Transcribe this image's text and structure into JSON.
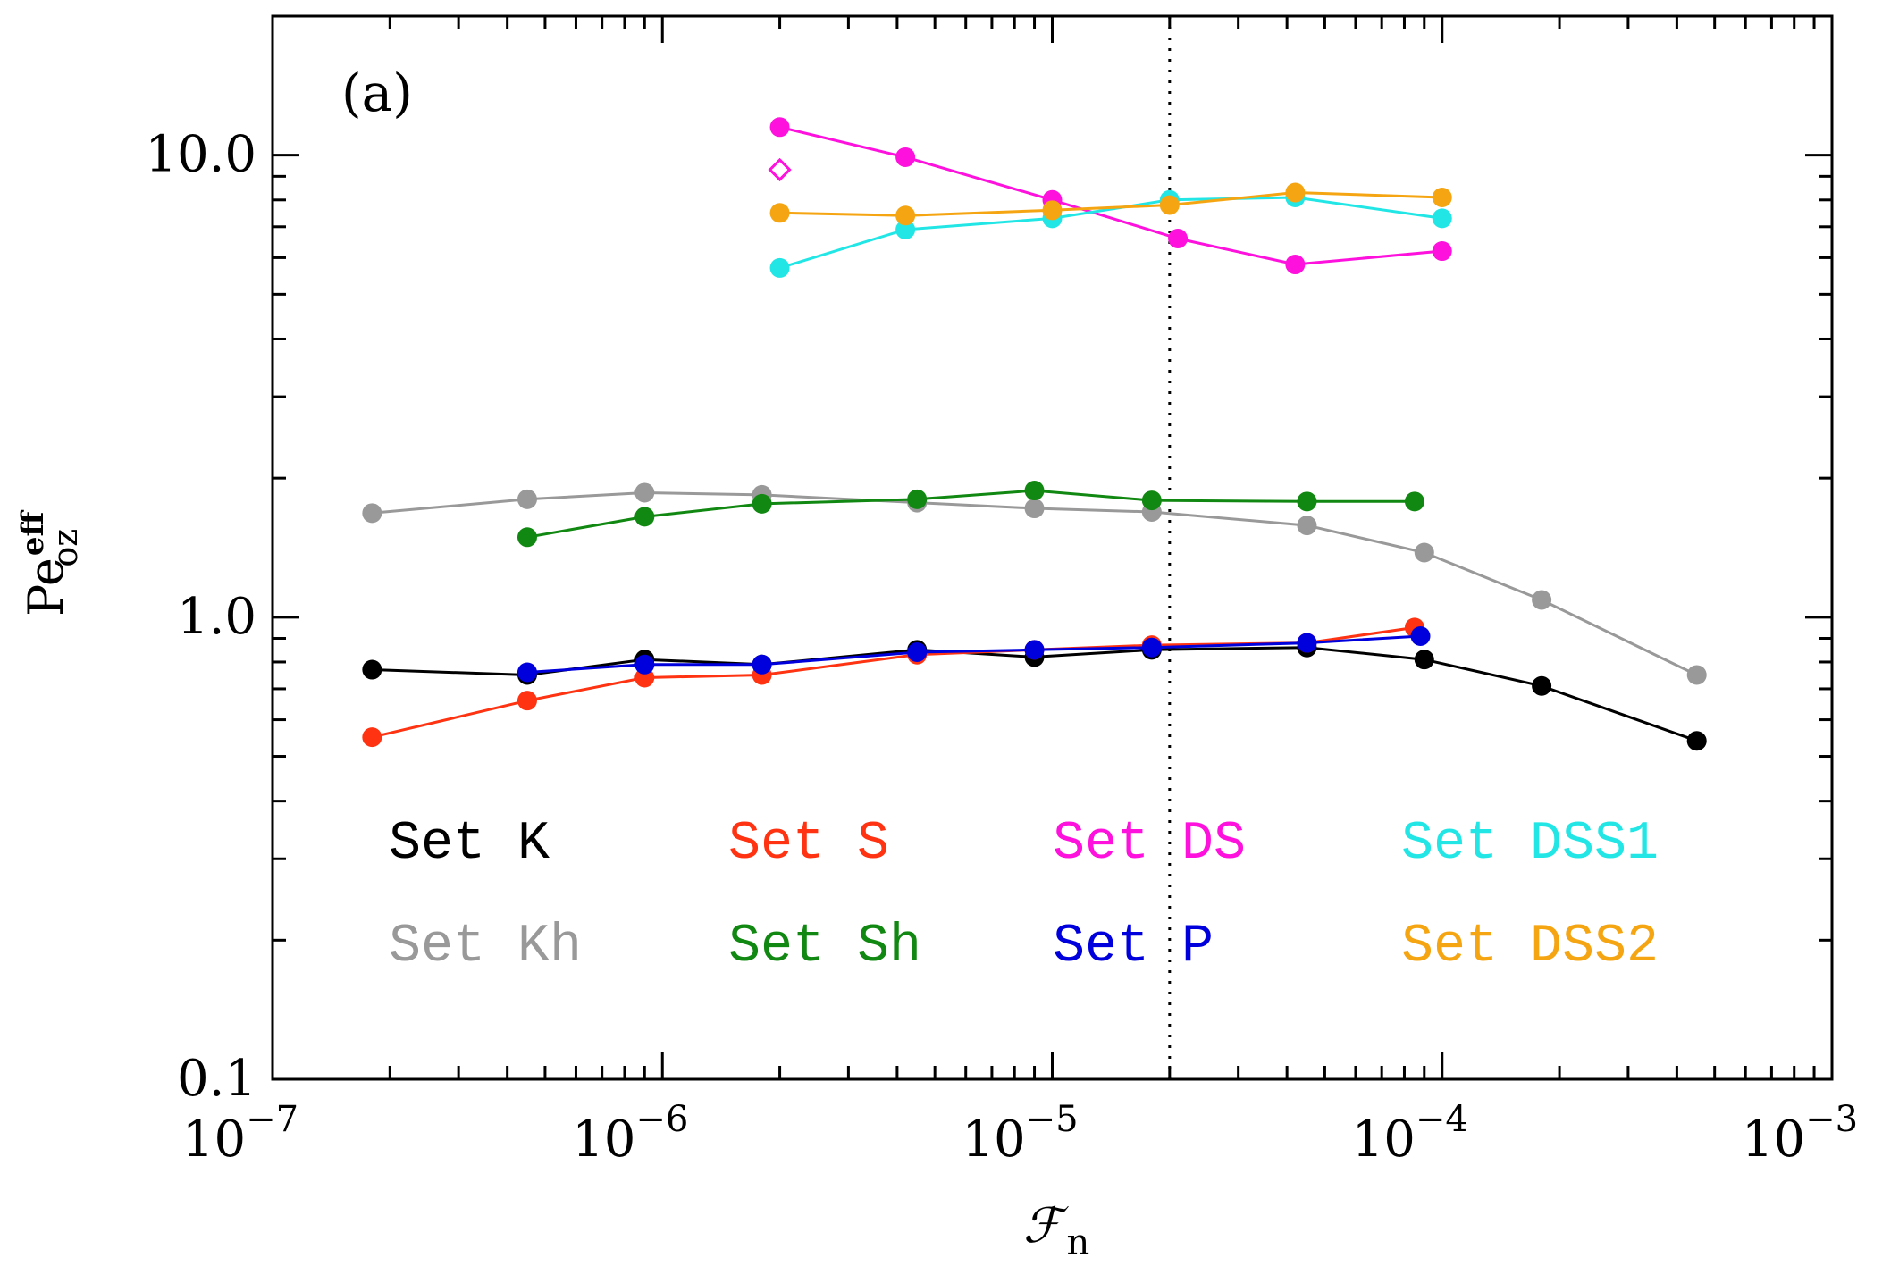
{
  "chart_data": {
    "type": "line",
    "panel_label": "(a)",
    "xlabel": "ℱ",
    "xlabel_sub": "n",
    "ylabel": "Pe",
    "ylabel_sup": "eff",
    "ylabel_sub": "oz",
    "xscale": "log",
    "yscale": "log",
    "xlim": [
      1e-07,
      0.001
    ],
    "ylim": [
      0.1,
      20
    ],
    "x_ticks": [
      {
        "value": 1e-07,
        "base": "10",
        "exp": "−7"
      },
      {
        "value": 1e-06,
        "base": "10",
        "exp": "−6"
      },
      {
        "value": 1e-05,
        "base": "10",
        "exp": "−5"
      },
      {
        "value": 0.0001,
        "base": "10",
        "exp": "−4"
      },
      {
        "value": 0.001,
        "base": "10",
        "exp": "−3"
      }
    ],
    "y_ticks": [
      {
        "value": 0.1,
        "label": "0.1"
      },
      {
        "value": 1,
        "label": "1.0"
      },
      {
        "value": 10,
        "label": "10.0"
      }
    ],
    "reference_line_x": 2e-05,
    "series": [
      {
        "name": "Set K",
        "color": "#000000",
        "x": [
          1.8e-07,
          4.5e-07,
          9e-07,
          1.8e-06,
          4.5e-06,
          9e-06,
          1.8e-05,
          4.5e-05,
          9e-05,
          0.00018,
          0.00045
        ],
        "y": [
          0.77,
          0.75,
          0.81,
          0.79,
          0.85,
          0.82,
          0.85,
          0.86,
          0.81,
          0.71,
          0.54
        ]
      },
      {
        "name": "Set Kh",
        "color": "#999999",
        "x": [
          1.8e-07,
          4.5e-07,
          9e-07,
          1.8e-06,
          4.5e-06,
          9e-06,
          1.8e-05,
          4.5e-05,
          9e-05,
          0.00018,
          0.00045
        ],
        "y": [
          1.68,
          1.8,
          1.86,
          1.84,
          1.77,
          1.72,
          1.69,
          1.58,
          1.38,
          1.09,
          0.75
        ]
      },
      {
        "name": "Set S",
        "color": "#ff3311",
        "x": [
          1.8e-07,
          4.5e-07,
          9e-07,
          1.8e-06,
          4.5e-06,
          9e-06,
          1.8e-05,
          4.5e-05,
          8.5e-05
        ],
        "y": [
          0.55,
          0.66,
          0.74,
          0.75,
          0.83,
          0.85,
          0.87,
          0.88,
          0.95
        ]
      },
      {
        "name": "Set Sh",
        "color": "#118811",
        "x": [
          4.5e-07,
          9e-07,
          1.8e-06,
          4.5e-06,
          9e-06,
          1.8e-05,
          4.5e-05,
          8.5e-05
        ],
        "y": [
          1.49,
          1.65,
          1.76,
          1.8,
          1.88,
          1.79,
          1.78,
          1.78
        ]
      },
      {
        "name": "Set DS",
        "color": "#ff11dd",
        "x": [
          2e-06,
          4.2e-06,
          1e-05,
          2.1e-05,
          4.2e-05,
          0.0001
        ],
        "y": [
          11.5,
          9.9,
          8.0,
          6.6,
          5.8,
          6.2
        ]
      },
      {
        "name": "Set P",
        "color": "#0000dd",
        "x": [
          4.5e-07,
          9e-07,
          1.8e-06,
          4.5e-06,
          9e-06,
          1.8e-05,
          4.5e-05,
          8.8e-05
        ],
        "y": [
          0.76,
          0.79,
          0.79,
          0.84,
          0.85,
          0.86,
          0.88,
          0.91
        ]
      },
      {
        "name": "Set DSS1",
        "color": "#22e6e6",
        "x": [
          2e-06,
          4.2e-06,
          1e-05,
          2e-05,
          4.2e-05,
          0.0001
        ],
        "y": [
          5.7,
          6.9,
          7.3,
          8.0,
          8.1,
          7.3
        ]
      },
      {
        "name": "Set DSS2",
        "color": "#f5a511",
        "x": [
          2e-06,
          4.2e-06,
          1e-05,
          2e-05,
          4.2e-05,
          0.0001
        ],
        "y": [
          7.5,
          7.4,
          7.6,
          7.8,
          8.3,
          8.1
        ]
      }
    ],
    "extra_points": [
      {
        "series": "Set DS",
        "marker": "open-diamond",
        "x": 2e-06,
        "y": 9.3
      }
    ],
    "legend": {
      "rows": [
        [
          "Set K",
          "Set S",
          "Set DS",
          "Set DSS1"
        ],
        [
          "Set Kh",
          "Set Sh",
          "Set P",
          "Set DSS2"
        ]
      ]
    }
  }
}
